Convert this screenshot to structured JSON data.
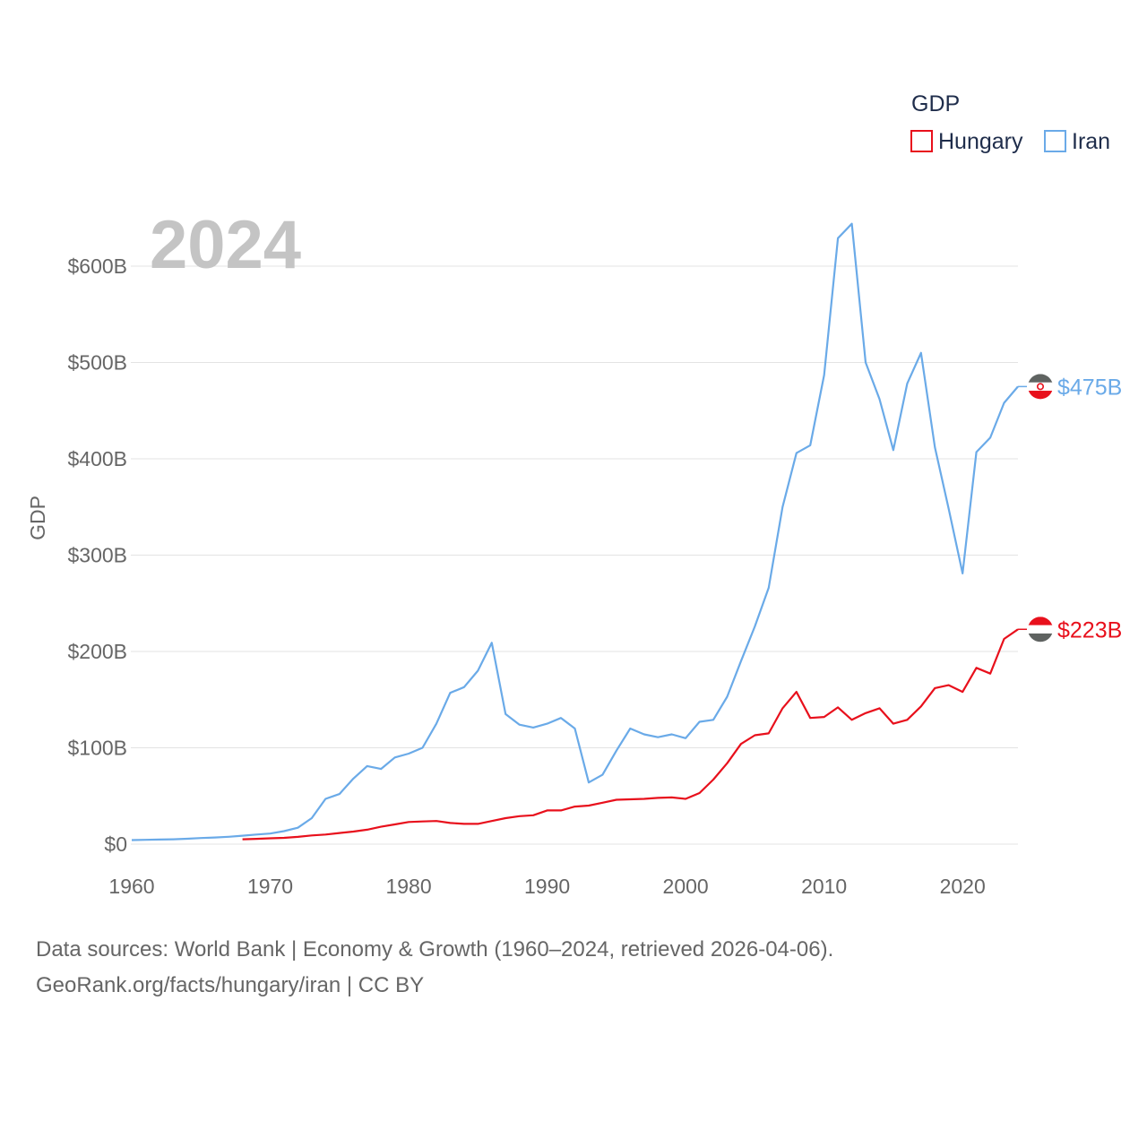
{
  "chart_data": {
    "type": "line",
    "year_label": "2024",
    "ylabel": "GDP",
    "legend_title": "GDP",
    "x_range": [
      1960,
      2024
    ],
    "ylim": [
      0,
      650
    ],
    "y_ticks": [
      {
        "value": 0,
        "label": "$0"
      },
      {
        "value": 100,
        "label": "$100B"
      },
      {
        "value": 200,
        "label": "$200B"
      },
      {
        "value": 300,
        "label": "$300B"
      },
      {
        "value": 400,
        "label": "$400B"
      },
      {
        "value": 500,
        "label": "$500B"
      },
      {
        "value": 600,
        "label": "$600B"
      }
    ],
    "x_ticks": [
      {
        "value": 1960,
        "label": "1960"
      },
      {
        "value": 1970,
        "label": "1970"
      },
      {
        "value": 1980,
        "label": "1980"
      },
      {
        "value": 1990,
        "label": "1990"
      },
      {
        "value": 2000,
        "label": "2000"
      },
      {
        "value": 2010,
        "label": "2010"
      },
      {
        "value": 2020,
        "label": "2020"
      }
    ],
    "series": [
      {
        "name": "Hungary",
        "color": "#e8101c",
        "end_label": "$223B",
        "flag": "hungary-flag-icon",
        "points": [
          [
            1968,
            5
          ],
          [
            1969,
            5.5
          ],
          [
            1970,
            6
          ],
          [
            1971,
            6.5
          ],
          [
            1972,
            7.5
          ],
          [
            1973,
            9
          ],
          [
            1974,
            10
          ],
          [
            1975,
            11.5
          ],
          [
            1976,
            13
          ],
          [
            1977,
            15
          ],
          [
            1978,
            18
          ],
          [
            1979,
            20.5
          ],
          [
            1980,
            23
          ],
          [
            1981,
            23.5
          ],
          [
            1982,
            24
          ],
          [
            1983,
            22
          ],
          [
            1984,
            21
          ],
          [
            1985,
            21
          ],
          [
            1986,
            24
          ],
          [
            1987,
            27
          ],
          [
            1988,
            29
          ],
          [
            1989,
            30
          ],
          [
            1990,
            35
          ],
          [
            1991,
            35
          ],
          [
            1992,
            39
          ],
          [
            1993,
            40
          ],
          [
            1994,
            43
          ],
          [
            1995,
            46
          ],
          [
            1996,
            46.5
          ],
          [
            1997,
            47
          ],
          [
            1998,
            48
          ],
          [
            1999,
            48.5
          ],
          [
            2000,
            47
          ],
          [
            2001,
            53
          ],
          [
            2002,
            67
          ],
          [
            2003,
            84
          ],
          [
            2004,
            104
          ],
          [
            2005,
            113
          ],
          [
            2006,
            115
          ],
          [
            2007,
            141
          ],
          [
            2008,
            158
          ],
          [
            2009,
            131
          ],
          [
            2010,
            132
          ],
          [
            2011,
            142
          ],
          [
            2012,
            129
          ],
          [
            2013,
            136
          ],
          [
            2014,
            141
          ],
          [
            2015,
            125
          ],
          [
            2016,
            129
          ],
          [
            2017,
            143
          ],
          [
            2018,
            162
          ],
          [
            2019,
            165
          ],
          [
            2020,
            158
          ],
          [
            2021,
            183
          ],
          [
            2022,
            177
          ],
          [
            2023,
            213
          ],
          [
            2024,
            223
          ]
        ]
      },
      {
        "name": "Iran",
        "color": "#6aaae8",
        "end_label": "$475B",
        "flag": "iran-flag-icon",
        "points": [
          [
            1960,
            4.2
          ],
          [
            1961,
            4.5
          ],
          [
            1962,
            4.7
          ],
          [
            1963,
            5
          ],
          [
            1964,
            5.6
          ],
          [
            1965,
            6.3
          ],
          [
            1966,
            6.9
          ],
          [
            1967,
            7.6
          ],
          [
            1968,
            8.7
          ],
          [
            1969,
            10
          ],
          [
            1970,
            11
          ],
          [
            1971,
            13.5
          ],
          [
            1972,
            17
          ],
          [
            1973,
            27
          ],
          [
            1974,
            47
          ],
          [
            1975,
            52
          ],
          [
            1976,
            68
          ],
          [
            1977,
            81
          ],
          [
            1978,
            78
          ],
          [
            1979,
            90
          ],
          [
            1980,
            94
          ],
          [
            1981,
            100
          ],
          [
            1982,
            125
          ],
          [
            1983,
            157
          ],
          [
            1984,
            163
          ],
          [
            1985,
            180
          ],
          [
            1986,
            209
          ],
          [
            1987,
            135
          ],
          [
            1988,
            124
          ],
          [
            1989,
            121
          ],
          [
            1990,
            125
          ],
          [
            1991,
            131
          ],
          [
            1992,
            120
          ],
          [
            1993,
            64
          ],
          [
            1994,
            72
          ],
          [
            1995,
            97
          ],
          [
            1996,
            120
          ],
          [
            1997,
            114
          ],
          [
            1998,
            111
          ],
          [
            1999,
            114
          ],
          [
            2000,
            110
          ],
          [
            2001,
            127
          ],
          [
            2002,
            129
          ],
          [
            2003,
            153
          ],
          [
            2004,
            190
          ],
          [
            2005,
            226
          ],
          [
            2006,
            266
          ],
          [
            2007,
            350
          ],
          [
            2008,
            406
          ],
          [
            2009,
            414
          ],
          [
            2010,
            487
          ],
          [
            2011,
            629
          ],
          [
            2012,
            644
          ],
          [
            2013,
            500
          ],
          [
            2014,
            462
          ],
          [
            2015,
            409
          ],
          [
            2016,
            478
          ],
          [
            2017,
            510
          ],
          [
            2018,
            412
          ],
          [
            2019,
            348
          ],
          [
            2020,
            281
          ],
          [
            2021,
            407
          ],
          [
            2022,
            422
          ],
          [
            2023,
            458
          ],
          [
            2024,
            475
          ]
        ]
      }
    ]
  },
  "footer": {
    "line1": "Data sources: World Bank | Economy & Growth (1960–2024, retrieved 2026-04-06).",
    "line2": "GeoRank.org/facts/hungary/iran | CC BY"
  }
}
